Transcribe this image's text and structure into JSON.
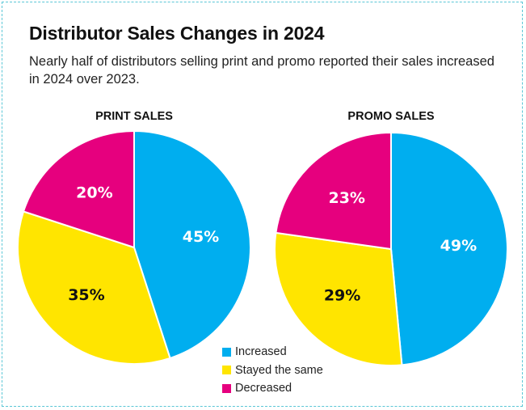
{
  "title": "Distributor Sales Changes in 2024",
  "subtitle": "Nearly half of distributors selling print and promo reported their sales increased in 2024 over 2023.",
  "colors": {
    "increased": "#00aeef",
    "stayed": "#ffe500",
    "decreased": "#e6007e",
    "border": "#5bc7d6"
  },
  "legend": [
    {
      "label": "Increased",
      "color": "#00aeef"
    },
    {
      "label": "Stayed the same",
      "color": "#ffe500"
    },
    {
      "label": "Decreased",
      "color": "#e6007e"
    }
  ],
  "chart_data": [
    {
      "type": "pie",
      "title": "PRINT SALES",
      "slices": [
        {
          "label": "Increased",
          "value": 45,
          "display": "45%",
          "color": "#00aeef",
          "text_color": "#ffffff"
        },
        {
          "label": "Stayed the same",
          "value": 35,
          "display": "35%",
          "color": "#ffe500",
          "text_color": "#111111"
        },
        {
          "label": "Decreased",
          "value": 20,
          "display": "20%",
          "color": "#e6007e",
          "text_color": "#ffffff"
        }
      ]
    },
    {
      "type": "pie",
      "title": "PROMO SALES",
      "slices": [
        {
          "label": "Increased",
          "value": 49,
          "display": "49%",
          "color": "#00aeef",
          "text_color": "#ffffff"
        },
        {
          "label": "Stayed the same",
          "value": 29,
          "display": "29%",
          "color": "#ffe500",
          "text_color": "#111111"
        },
        {
          "label": "Decreased",
          "value": 23,
          "display": "23%",
          "color": "#e6007e",
          "text_color": "#ffffff"
        }
      ]
    }
  ]
}
